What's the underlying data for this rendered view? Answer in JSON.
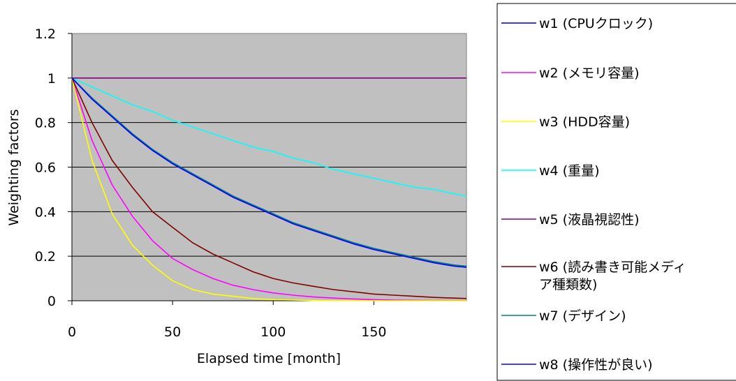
{
  "chart_data": {
    "type": "line",
    "title": "",
    "xlabel": "Elapsed time [month]",
    "ylabel": "Weighting factors",
    "xlim": [
      0,
      196
    ],
    "ylim": [
      0,
      1.2
    ],
    "x_ticks": [
      0,
      50,
      100,
      150
    ],
    "x_tick_labels": [
      "0",
      "50",
      "100",
      "150"
    ],
    "y_ticks": [
      0,
      0.2,
      0.4,
      0.6,
      0.8,
      1,
      1.2
    ],
    "y_tick_labels": [
      "0",
      "0.2",
      "0.4",
      "0.6",
      "0.8",
      "1",
      "1.2"
    ],
    "grid": "horizontal",
    "plot_background": "#c0c0c0",
    "legend_position": "right",
    "x": [
      0,
      10,
      20,
      30,
      40,
      50,
      60,
      70,
      80,
      90,
      100,
      110,
      120,
      130,
      140,
      150,
      160,
      170,
      180,
      190,
      196
    ],
    "series": [
      {
        "name": "w1 (CPUクロック)",
        "color": "#000080",
        "values": [
          1,
          0.91,
          0.83,
          0.75,
          0.68,
          0.62,
          0.57,
          0.52,
          0.47,
          0.43,
          0.39,
          0.35,
          0.32,
          0.29,
          0.26,
          0.235,
          0.215,
          0.195,
          0.175,
          0.16,
          0.155
        ]
      },
      {
        "name": "w2 (メモリ容量)",
        "color": "#ff00ff",
        "values": [
          1,
          0.72,
          0.52,
          0.38,
          0.27,
          0.19,
          0.14,
          0.1,
          0.07,
          0.05,
          0.035,
          0.025,
          0.017,
          0.012,
          0.008,
          0.005,
          0.003,
          0.002,
          0.001,
          0.001,
          0
        ]
      },
      {
        "name": "w3 (HDD容量)",
        "color": "#ffff00",
        "values": [
          1,
          0.63,
          0.39,
          0.25,
          0.16,
          0.09,
          0.05,
          0.03,
          0.02,
          0.01,
          0.005,
          0.003,
          0.001,
          0,
          0,
          0,
          0,
          0,
          0,
          0,
          0
        ]
      },
      {
        "name": "w4 (重量)",
        "color": "#00ffff",
        "values": [
          1,
          0.96,
          0.92,
          0.88,
          0.85,
          0.81,
          0.78,
          0.75,
          0.72,
          0.69,
          0.67,
          0.64,
          0.62,
          0.59,
          0.57,
          0.55,
          0.53,
          0.51,
          0.5,
          0.48,
          0.47
        ]
      },
      {
        "name": "w5 (液晶視認性)",
        "color": "#800080",
        "values": [
          1,
          1,
          1,
          1,
          1,
          1,
          1,
          1,
          1,
          1,
          1,
          1,
          1,
          1,
          1,
          1,
          1,
          1,
          1,
          1,
          1
        ]
      },
      {
        "name": "w6 (読み書き可能メディア種類数)",
        "color": "#800000",
        "values": [
          1,
          0.8,
          0.63,
          0.51,
          0.4,
          0.33,
          0.26,
          0.21,
          0.17,
          0.13,
          0.1,
          0.08,
          0.065,
          0.05,
          0.04,
          0.03,
          0.025,
          0.02,
          0.015,
          0.012,
          0.01
        ]
      },
      {
        "name": "w7 (デザイン)",
        "color": "#008080",
        "values": [
          1,
          0.91,
          0.83,
          0.75,
          0.68,
          0.62,
          0.57,
          0.52,
          0.47,
          0.43,
          0.39,
          0.35,
          0.32,
          0.29,
          0.26,
          0.235,
          0.215,
          0.195,
          0.175,
          0.16,
          0.155
        ]
      },
      {
        "name": "w8 (操作性が良い)",
        "color": "#0000ff",
        "values": [
          1,
          0.905,
          0.825,
          0.745,
          0.675,
          0.615,
          0.565,
          0.515,
          0.465,
          0.425,
          0.385,
          0.345,
          0.315,
          0.285,
          0.255,
          0.23,
          0.21,
          0.19,
          0.17,
          0.155,
          0.15
        ]
      }
    ],
    "legend": {
      "w1": "w1 (CPUクロック)",
      "w2": "w2 (メモリ容量)",
      "w3": "w3 (HDD容量)",
      "w4": "w4 (重量)",
      "w5": "w5 (液晶視認性)",
      "w6_line1": "w6 (読み書き可能メディ",
      "w6_line2": "ア種類数)",
      "w7": "w7 (デザイン)",
      "w8": "w8 (操作性が良い)"
    }
  }
}
